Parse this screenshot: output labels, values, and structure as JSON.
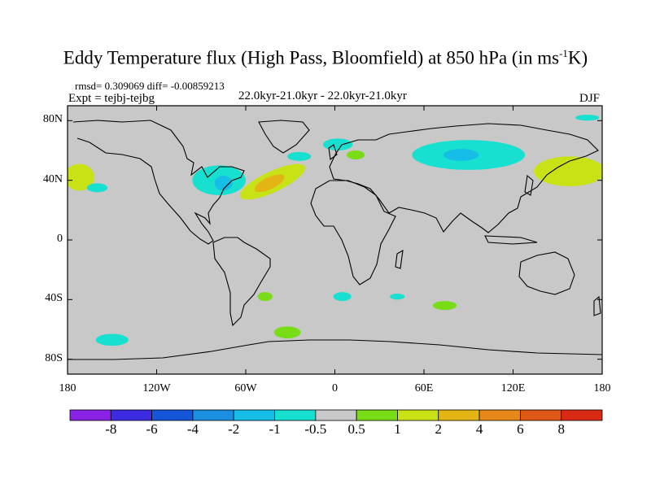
{
  "header": {
    "title_main": "Eddy Temperature flux (High Pass, Bloomfield) at 850 hPa (in ms",
    "title_sup": "-1",
    "title_end": "K)",
    "rmsd_line": "rmsd= 0.309069 diff= -0.00859213",
    "expt_line": "Expt = tejbj-tejbg",
    "period_line": "22.0kyr-21.0kyr - 22.0kyr-21.0kyr",
    "season": "DJF"
  },
  "map": {
    "lon_range": [
      -180,
      180
    ],
    "lat_range": [
      -90,
      90
    ],
    "lon_ticks": [
      {
        "value": -180,
        "label": "180"
      },
      {
        "value": -120,
        "label": "120W"
      },
      {
        "value": -60,
        "label": "60W"
      },
      {
        "value": 0,
        "label": "0"
      },
      {
        "value": 60,
        "label": "60E"
      },
      {
        "value": 120,
        "label": "120E"
      },
      {
        "value": 180,
        "label": "180"
      }
    ],
    "lat_ticks": [
      {
        "value": 80,
        "label": "80N"
      },
      {
        "value": 40,
        "label": "40N"
      },
      {
        "value": 0,
        "label": "0"
      },
      {
        "value": -40,
        "label": "40S"
      },
      {
        "value": -80,
        "label": "80S"
      }
    ],
    "background_color": "#c8c8c8"
  },
  "colorbar": {
    "labels": [
      "-8",
      "-6",
      "-4",
      "-2",
      "-1",
      "-0.5",
      "0.5",
      "1",
      "2",
      "4",
      "6",
      "8"
    ],
    "colors": [
      "#8a22e6",
      "#3c2be0",
      "#1555d8",
      "#1a8fe0",
      "#16bde6",
      "#18e0d0",
      "#c8c8c8",
      "#78dc16",
      "#c8e216",
      "#e2b414",
      "#e88818",
      "#e05818",
      "#d82a14"
    ]
  },
  "chart_data": {
    "type": "contour_map",
    "title": "Eddy Temperature flux (High Pass, Bloomfield) at 850 hPa (in ms-1K)",
    "season": "DJF",
    "levels": [
      -8,
      -6,
      -4,
      -2,
      -1,
      -0.5,
      0.5,
      1,
      2,
      4,
      6,
      8
    ],
    "anomalies": [
      {
        "name": "n-atlantic-1to2",
        "lon": -42,
        "lat": 39,
        "rlon": 24,
        "rlat": 7,
        "rot": -25,
        "band": "1 to 2"
      },
      {
        "name": "n-atlantic-2to4",
        "lon": -44,
        "lat": 38,
        "rlon": 11,
        "rlat": 4,
        "rot": -25,
        "band": "2 to 4"
      },
      {
        "name": "n-america-east-neg",
        "lon": -78,
        "lat": 40,
        "rlon": 18,
        "rlat": 10,
        "rot": 0,
        "band": "-1 to -0.5"
      },
      {
        "name": "n-america-east-neg-core",
        "lon": -75,
        "lat": 38,
        "rlon": 6,
        "rlat": 5,
        "rot": 0,
        "band": "-2 to -1"
      },
      {
        "name": "siberia-neg",
        "lon": 90,
        "lat": 57,
        "rlon": 38,
        "rlat": 10,
        "rot": 0,
        "band": "-1 to -0.5"
      },
      {
        "name": "siberia-neg-core",
        "lon": 85,
        "lat": 57,
        "rlon": 12,
        "rlat": 4,
        "rot": 0,
        "band": "-2 to -1"
      },
      {
        "name": "n-pacific-west-pos",
        "lon": 158,
        "lat": 46,
        "rlon": 24,
        "rlat": 10,
        "rot": 0,
        "band": "1 to 2"
      },
      {
        "name": "n-pacific-east-pos",
        "lon": -172,
        "lat": 42,
        "rlon": 10,
        "rlat": 9,
        "rot": 0,
        "band": "1 to 2"
      },
      {
        "name": "scandinavia-neg",
        "lon": 2,
        "lat": 64,
        "rlon": 10,
        "rlat": 4,
        "rot": 0,
        "band": "-1 to -0.5"
      },
      {
        "name": "europe-pos",
        "lon": 14,
        "lat": 57,
        "rlon": 6,
        "rlat": 3,
        "rot": 0,
        "band": "0.5 to 1"
      },
      {
        "name": "greenland-neg",
        "lon": -24,
        "lat": 56,
        "rlon": 8,
        "rlat": 3,
        "rot": 0,
        "band": "-1 to -0.5"
      },
      {
        "name": "pacific-nw-neg",
        "lon": -160,
        "lat": 35,
        "rlon": 7,
        "rlat": 3,
        "rot": 0,
        "band": "-1 to -0.5"
      },
      {
        "name": "s-america-pos",
        "lon": -47,
        "lat": -38,
        "rlon": 5,
        "rlat": 3,
        "rot": 0,
        "band": "0.5 to 1"
      },
      {
        "name": "s-atlantic-pos",
        "lon": -32,
        "lat": -62,
        "rlon": 9,
        "rlat": 4,
        "rot": 0,
        "band": "0.5 to 1"
      },
      {
        "name": "s-pacific-neg",
        "lon": -150,
        "lat": -67,
        "rlon": 11,
        "rlat": 4,
        "rot": 0,
        "band": "-1 to -0.5"
      },
      {
        "name": "s-indian-pos",
        "lon": 74,
        "lat": -44,
        "rlon": 8,
        "rlat": 3,
        "rot": 0,
        "band": "0.5 to 1"
      },
      {
        "name": "s-atlantic-2-neg",
        "lon": 5,
        "lat": -38,
        "rlon": 6,
        "rlat": 3,
        "rot": 0,
        "band": "-1 to -0.5"
      },
      {
        "name": "s-indian-neg",
        "lon": 42,
        "lat": -38,
        "rlon": 5,
        "rlat": 2,
        "rot": 0,
        "band": "-1 to -0.5"
      },
      {
        "name": "arctic-neg",
        "lon": 170,
        "lat": 82,
        "rlon": 8,
        "rlat": 2,
        "rot": 0,
        "band": "-1 to -0.5"
      }
    ]
  }
}
